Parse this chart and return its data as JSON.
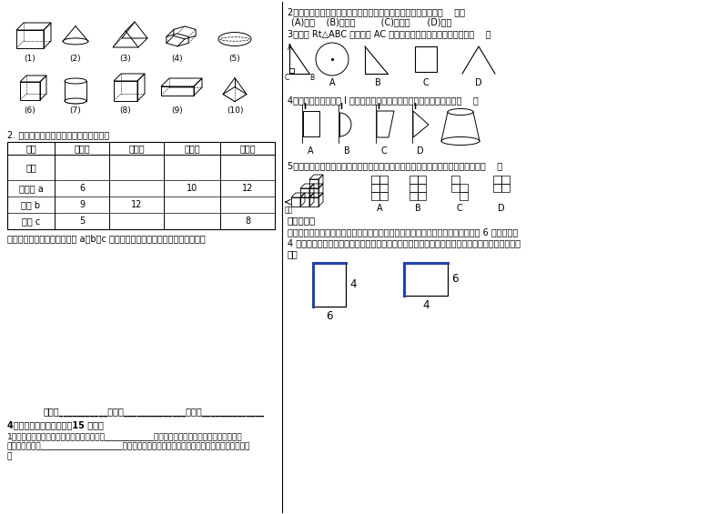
{
  "bg_color": "#ffffff",
  "figures_row1": [
    "(1)",
    "(2)",
    "(3)",
    "(4)",
    "(5)"
  ],
  "figures_row2": [
    "(6)",
    "(7)",
    "(8)",
    "(9)",
    "(10)"
  ],
  "section2_text": "2. 观察下列多面体，并把下表补充完整。",
  "table_headers": [
    "名称",
    "三棱柱",
    "四棱柱",
    "五棱柱",
    "六棱柱"
  ],
  "table_row1": [
    "图形",
    "",
    "",
    "",
    ""
  ],
  "table_row2": [
    "顶点数 a",
    "6",
    "",
    "10",
    "12"
  ],
  "table_row3": [
    "棱数 b",
    "9",
    "12",
    "",
    ""
  ],
  "table_row4": [
    "面数 c",
    "5",
    "",
    "",
    "8"
  ],
  "table_note": "观察上表中的结果，你能发现 a、b、c 之间有什么关系吗？请写出发现的关系式",
  "right_q2": "2．按组成面的侧面「平」与「曲」划分，与圆柱为同一类的是（    ）。",
  "right_q2_opts": "(A)圆锥    (B)长方体         (C)正方体      (D)棱柱",
  "right_q3": "3．如图 Rt△ABC 绕直角边 AC 旋转一周，所得几何体的主视图是（    ）",
  "right_q3_labels": [
    "A",
    "B",
    "C",
    "D"
  ],
  "right_q4": "4．将下列图形绕直线 l 旋转一周，可以得到右图所示的立体图形的是（    ）",
  "right_q4_labels": [
    "A",
    "B",
    "C",
    "D"
  ],
  "right_q5": "5．下图是由几个相同的小正方体拼成的一个几何体，从左边看得到的平面图形是（    ）",
  "ability_title": "能力提升：",
  "ability_line1": "将一个长方形纸它的一边沿直线旋转一周，得到的几何体是圆柱，现在有一个长为 6 厘米，宽为",
  "ability_line2": "4 厘米的长方形。分别绕它的长、宽所在的直线旋转一周，得到不同的圆柱，它们的体积分别是多",
  "ability_line3": "大？",
  "dim1_w": "6",
  "dim1_h": "4",
  "dim2_w": "4",
  "dim2_h": "6",
  "bottom_class": "班级：___________小组：______________姓名：______________",
  "bottom_hw_title": "4、课时作业（预计时间：15 分钟）",
  "bottom_hw1": "1、笔尖在纸上划过就能写出汉字，这说明了____________汽车的雨刷器摇动就能刷去挡风玻璃上的",
  "bottom_hw2": "雨滴。这说明了____________________；长方形纸片绕它的一边旋转形成了一个圆柱体，这说明了",
  "bottom_hw3": "。"
}
